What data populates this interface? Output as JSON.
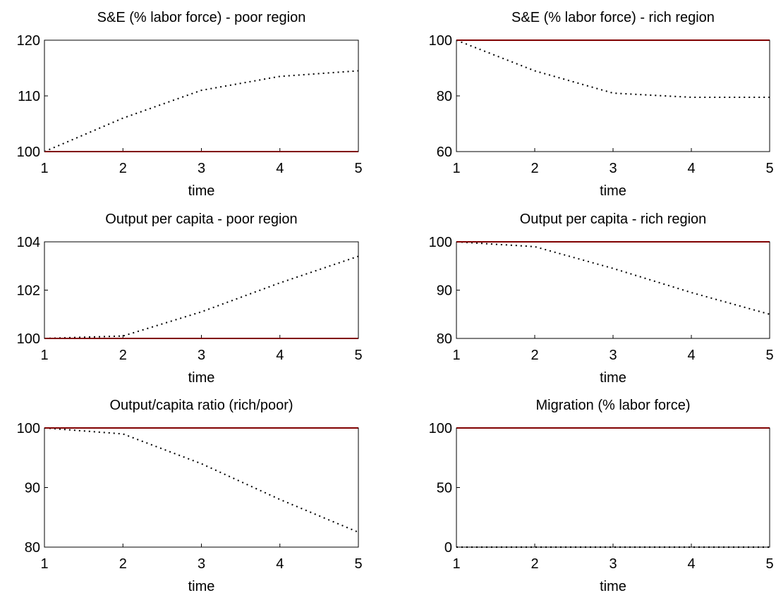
{
  "chart_data": [
    {
      "type": "line",
      "title": "S&E (% labor force) - poor region",
      "x_label": "time",
      "x": [
        1,
        2,
        3,
        4,
        5
      ],
      "xlim": [
        1,
        5
      ],
      "xticks": [
        1,
        2,
        3,
        4,
        5
      ],
      "ylim": [
        100,
        120
      ],
      "yticks": [
        100,
        110,
        120
      ],
      "series": [
        {
          "color": "#ff0000",
          "style": "solid",
          "values": [
            100,
            100,
            100,
            100,
            100
          ]
        },
        {
          "color": "#000000",
          "style": "dotted",
          "values": [
            100,
            106,
            111,
            113.5,
            114.5
          ]
        }
      ]
    },
    {
      "type": "line",
      "title": "S&E (% labor force) - rich region",
      "x_label": "time",
      "x": [
        1,
        2,
        3,
        4,
        5
      ],
      "xlim": [
        1,
        5
      ],
      "xticks": [
        1,
        2,
        3,
        4,
        5
      ],
      "ylim": [
        60,
        100
      ],
      "yticks": [
        60,
        80,
        100
      ],
      "series": [
        {
          "color": "#ff0000",
          "style": "solid",
          "values": [
            100,
            100,
            100,
            100,
            100
          ]
        },
        {
          "color": "#000000",
          "style": "dotted",
          "values": [
            100,
            89,
            81,
            79.5,
            79.5
          ]
        }
      ]
    },
    {
      "type": "line",
      "title": "Output per capita - poor region",
      "x_label": "time",
      "x": [
        1,
        2,
        3,
        4,
        5
      ],
      "xlim": [
        1,
        5
      ],
      "xticks": [
        1,
        2,
        3,
        4,
        5
      ],
      "ylim": [
        100,
        104
      ],
      "yticks": [
        100,
        102,
        104
      ],
      "series": [
        {
          "color": "#ff0000",
          "style": "solid",
          "values": [
            100,
            100,
            100,
            100,
            100
          ]
        },
        {
          "color": "#000000",
          "style": "dotted",
          "values": [
            100,
            100.1,
            101.1,
            102.3,
            103.4
          ]
        }
      ]
    },
    {
      "type": "line",
      "title": "Output per capita - rich region",
      "x_label": "time",
      "x": [
        1,
        2,
        3,
        4,
        5
      ],
      "xlim": [
        1,
        5
      ],
      "xticks": [
        1,
        2,
        3,
        4,
        5
      ],
      "ylim": [
        80,
        100
      ],
      "yticks": [
        80,
        90,
        100
      ],
      "series": [
        {
          "color": "#ff0000",
          "style": "solid",
          "values": [
            100,
            100,
            100,
            100,
            100
          ]
        },
        {
          "color": "#000000",
          "style": "dotted",
          "values": [
            100,
            99,
            94.5,
            89.5,
            85
          ]
        }
      ]
    },
    {
      "type": "line",
      "title": "Output/capita ratio (rich/poor)",
      "x_label": "time",
      "x": [
        1,
        2,
        3,
        4,
        5
      ],
      "xlim": [
        1,
        5
      ],
      "xticks": [
        1,
        2,
        3,
        4,
        5
      ],
      "ylim": [
        80,
        100
      ],
      "yticks": [
        80,
        90,
        100
      ],
      "series": [
        {
          "color": "#ff0000",
          "style": "solid",
          "values": [
            100,
            100,
            100,
            100,
            100
          ]
        },
        {
          "color": "#000000",
          "style": "dotted",
          "values": [
            100,
            99,
            94,
            88,
            82.5
          ]
        }
      ]
    },
    {
      "type": "line",
      "title": "Migration (% labor force)",
      "x_label": "time",
      "x": [
        1,
        2,
        3,
        4,
        5
      ],
      "xlim": [
        1,
        5
      ],
      "xticks": [
        1,
        2,
        3,
        4,
        5
      ],
      "ylim": [
        0,
        100
      ],
      "yticks": [
        0,
        50,
        100
      ],
      "series": [
        {
          "color": "#ff0000",
          "style": "solid",
          "values": [
            100,
            100,
            100,
            100,
            100
          ]
        },
        {
          "color": "#000000",
          "style": "dotted",
          "values": [
            0,
            0,
            0,
            0,
            0
          ]
        }
      ]
    }
  ]
}
